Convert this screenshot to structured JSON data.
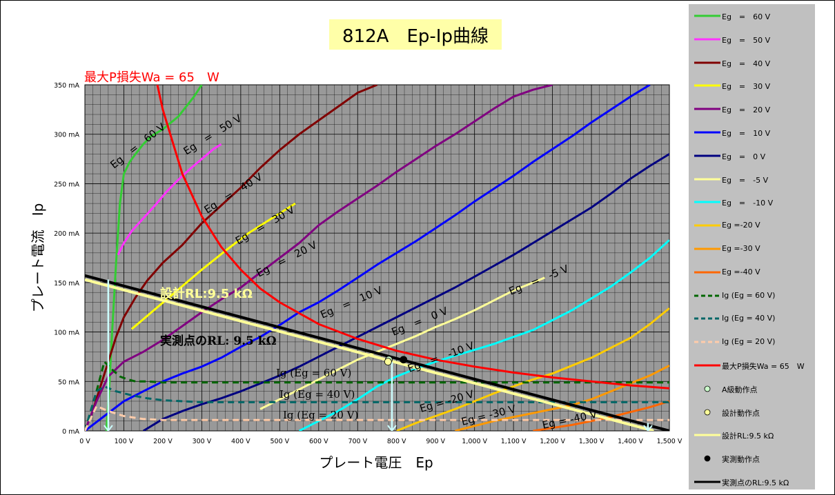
{
  "chart_data": {
    "type": "line",
    "title": "812A　Ep-Ip曲線",
    "xlabel": "プレート電圧　Ep",
    "ylabel": "プレート電流　Ip",
    "xlim": [
      0,
      1500
    ],
    "ylim": [
      0,
      350
    ],
    "x_ticks": [
      "0 V",
      "100 V",
      "200 V",
      "300 V",
      "400 V",
      "500 V",
      "600 V",
      "700 V",
      "800 V",
      "900 V",
      "1,000 V",
      "1,100 V",
      "1,200 V",
      "1,300 V",
      "1,400 V",
      "1,500 V"
    ],
    "y_ticks": [
      "0 mA",
      "50 mA",
      "100 mA",
      "150 mA",
      "200 mA",
      "250 mA",
      "300 mA",
      "350 mA"
    ],
    "grid": true,
    "legend_position": "right",
    "max_loss_heading": "最大P損失Wa = 65　W",
    "series": [
      {
        "name": "Eg　=　60 V",
        "color": "#33cc33",
        "style": "solid",
        "label": "Eg　=　60 V",
        "x": [
          55,
          62,
          70,
          80,
          90,
          100,
          115,
          130,
          150,
          170,
          200,
          240,
          280,
          300
        ],
        "y": [
          0,
          40,
          100,
          170,
          230,
          260,
          272,
          280,
          290,
          298,
          305,
          318,
          338,
          350
        ]
      },
      {
        "name": "Eg　=　50 V",
        "color": "#ff33ff",
        "style": "solid",
        "label": "Eg　=　50 V",
        "x": [
          85,
          100,
          120,
          150,
          180,
          210,
          240,
          270,
          300,
          330,
          350
        ],
        "y": [
          178,
          190,
          202,
          215,
          228,
          242,
          254,
          265,
          275,
          285,
          290
        ]
      },
      {
        "name": "Eg　=　40 V",
        "color": "#800000",
        "style": "solid",
        "label": "Eg　=　40 V",
        "x": [
          0,
          20,
          40,
          60,
          80,
          100,
          130,
          160,
          200,
          250,
          300,
          350,
          400,
          450,
          500,
          550,
          600,
          650,
          700,
          750
        ],
        "y": [
          0,
          20,
          45,
          70,
          95,
          115,
          135,
          152,
          170,
          188,
          210,
          228,
          246,
          266,
          284,
          300,
          314,
          328,
          342,
          350
        ]
      },
      {
        "name": "Eg　=　30 V",
        "color": "#ffff00",
        "style": "solid",
        "label": "Eg　=　30 V",
        "x": [
          120,
          180,
          240,
          300,
          360,
          420,
          480,
          540
        ],
        "y": [
          103,
          123,
          143,
          163,
          182,
          200,
          215,
          230
        ]
      },
      {
        "name": "Eg　=　20 V",
        "color": "#800080",
        "style": "solid",
        "label": "Eg　=　20 V",
        "x": [
          0,
          30,
          60,
          100,
          150,
          200,
          250,
          300,
          350,
          400,
          450,
          500,
          550,
          600,
          650,
          700,
          750,
          800,
          850,
          900,
          950,
          1000,
          1050,
          1100,
          1150,
          1200
        ],
        "y": [
          0,
          30,
          55,
          70,
          80,
          92,
          106,
          120,
          133,
          145,
          160,
          175,
          190,
          208,
          222,
          235,
          248,
          262,
          275,
          288,
          300,
          313,
          326,
          338,
          345,
          350
        ]
      },
      {
        "name": "Eg　=　10 V",
        "color": "#0000ff",
        "style": "solid",
        "label": "Eg　=　10 V",
        "x": [
          0,
          50,
          100,
          150,
          200,
          250,
          300,
          350,
          400,
          450,
          500,
          550,
          600,
          650,
          700,
          750,
          800,
          850,
          900,
          950,
          1000,
          1050,
          1100,
          1150,
          1200,
          1250,
          1300,
          1350,
          1400,
          1450
        ],
        "y": [
          0,
          15,
          30,
          40,
          50,
          58,
          65,
          74,
          85,
          95,
          107,
          120,
          130,
          142,
          155,
          168,
          180,
          192,
          205,
          218,
          232,
          245,
          258,
          272,
          285,
          298,
          312,
          325,
          338,
          350
        ]
      },
      {
        "name": "Eg　=　0 V",
        "color": "#000080",
        "style": "solid",
        "label": "Eg　=　0 V",
        "x": [
          150,
          200,
          250,
          300,
          350,
          400,
          450,
          500,
          550,
          600,
          650,
          700,
          750,
          800,
          850,
          900,
          950,
          1000,
          1050,
          1100,
          1150,
          1200,
          1250,
          1300,
          1350,
          1400,
          1450,
          1500
        ],
        "y": [
          0,
          12,
          20,
          27,
          33,
          40,
          48,
          56,
          65,
          75,
          85,
          95,
          105,
          115,
          125,
          135,
          145,
          156,
          167,
          178,
          190,
          202,
          214,
          226,
          240,
          255,
          268,
          280
        ]
      },
      {
        "name": "Eg　=　-5 V",
        "color": "#ffff99",
        "style": "solid",
        "label": "Eg　=　-5 V",
        "x": [
          450,
          500,
          550,
          600,
          650,
          700,
          750,
          800,
          850,
          900,
          950,
          1000,
          1050,
          1100,
          1150,
          1180
        ],
        "y": [
          22,
          32,
          42,
          52,
          62,
          72,
          80,
          88,
          96,
          105,
          113,
          122,
          132,
          142,
          150,
          155
        ]
      },
      {
        "name": "Eg　=　-10 V",
        "color": "#00ffff",
        "style": "solid",
        "label": "Eg　=　-10 V",
        "x": [
          550,
          600,
          650,
          700,
          750,
          800,
          850,
          900,
          950,
          1000,
          1050,
          1100,
          1150,
          1200,
          1250,
          1300,
          1350,
          1400,
          1450,
          1500
        ],
        "y": [
          0,
          10,
          20,
          32,
          45,
          55,
          63,
          70,
          76,
          82,
          88,
          95,
          102,
          112,
          122,
          134,
          146,
          160,
          175,
          193
        ]
      },
      {
        "name": "Eg =-20 V",
        "color": "#ffcc00",
        "style": "solid",
        "label": "Eg = -20 V",
        "x": [
          800,
          850,
          900,
          950,
          1000,
          1050,
          1100,
          1150,
          1200,
          1250,
          1300,
          1350,
          1400,
          1450,
          1500
        ],
        "y": [
          0,
          8,
          15,
          22,
          30,
          38,
          45,
          52,
          58,
          66,
          74,
          84,
          94,
          108,
          124
        ]
      },
      {
        "name": "Eg =-30 V",
        "color": "#ff9900",
        "style": "solid",
        "label": "Eg = -30 V",
        "x": [
          950,
          1000,
          1050,
          1100,
          1150,
          1200,
          1250,
          1300,
          1350,
          1400,
          1450,
          1500
        ],
        "y": [
          0,
          5,
          10,
          14,
          18,
          22,
          26,
          32,
          40,
          48,
          56,
          66
        ]
      },
      {
        "name": "Eg =-40 V",
        "color": "#ff6600",
        "style": "solid",
        "label": "Eg = -40 V",
        "x": [
          1150,
          1200,
          1250,
          1300,
          1350,
          1400,
          1450,
          1500
        ],
        "y": [
          0,
          3,
          6,
          10,
          14,
          19,
          24,
          30
        ]
      },
      {
        "name": "Ig (Eg = 60 V)",
        "color": "#006600",
        "style": "dashed",
        "label": "Ig (Eg = 60 V)",
        "x": [
          0,
          30,
          50,
          70,
          90,
          110,
          130,
          160,
          200,
          300,
          400,
          600,
          800,
          1000,
          1200,
          1500
        ],
        "y": [
          0,
          40,
          70,
          62,
          55,
          52,
          50,
          50,
          49,
          49,
          49,
          49,
          49,
          49,
          49,
          49
        ]
      },
      {
        "name": "Ig (Eg = 40 V)",
        "color": "#006666",
        "style": "dashed",
        "label": "Ig (Eg = 40 V)",
        "x": [
          0,
          30,
          50,
          80,
          120,
          160,
          200,
          250,
          300,
          400,
          500,
          700,
          1000,
          1500
        ],
        "y": [
          0,
          40,
          45,
          40,
          36,
          33,
          31,
          30,
          29,
          29,
          29,
          29,
          29,
          29
        ]
      },
      {
        "name": "Ig (Eg = 20 V)",
        "color": "#ffccaa",
        "style": "dashed",
        "label": "Ig (Eg = 20 V)",
        "x": [
          0,
          30,
          60,
          100,
          150,
          200,
          300,
          500,
          800,
          1000,
          1500
        ],
        "y": [
          0,
          25,
          20,
          15,
          12,
          11,
          11,
          11,
          11,
          11,
          11
        ]
      },
      {
        "name": "最大P損失Wa = 65　W",
        "color": "#ff0000",
        "style": "solid",
        "label": "",
        "x": [
          186,
          200,
          250,
          300,
          350,
          400,
          450,
          500,
          600,
          700,
          800,
          900,
          1000,
          1100,
          1200,
          1300,
          1400,
          1500
        ],
        "y": [
          350,
          325,
          260,
          217,
          186,
          163,
          144,
          130,
          108,
          93,
          81,
          72,
          65,
          59,
          54,
          50,
          46,
          43
        ]
      },
      {
        "name": "設計RL:9.5 kΩ",
        "color": "#ffff99",
        "style": "solid",
        "label": "設計RL:9.5 kΩ",
        "x": [
          0,
          1460
        ],
        "y": [
          153,
          0
        ]
      },
      {
        "name": "実測点のRL:9.5 kΩ",
        "color": "#000000",
        "style": "solid",
        "label": "実測点のRL:9.5 kΩ",
        "x": [
          0,
          1500
        ],
        "y": [
          157,
          0
        ]
      }
    ],
    "points": [
      {
        "name": "A級動作点",
        "x": 780,
        "y": 72,
        "fill": "#ccffcc"
      },
      {
        "name": "設計動作点",
        "x": 778,
        "y": 70,
        "fill": "#ffff99"
      },
      {
        "name": "実測動作点",
        "x": 800,
        "y": 72,
        "fill": "#000000"
      }
    ],
    "annotations": [
      {
        "text": "Ig (Eg = 60 V)",
        "x": 490,
        "y": 59
      },
      {
        "text": "Ig (Eg = 40 V)",
        "x": 495,
        "y": 38
      },
      {
        "text": "Ig (Eg = 20 V)",
        "x": 500,
        "y": 16
      },
      {
        "text": "実測点のRL: 9.5 kΩ",
        "x": 200,
        "y": 88,
        "color": "#000000"
      }
    ]
  }
}
